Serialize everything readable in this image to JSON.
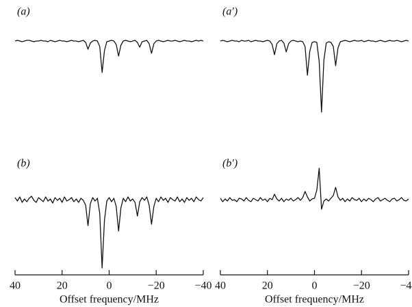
{
  "chart_data": [
    {
      "type": "line",
      "label": "(a)",
      "color": "#111",
      "xlim": [
        40,
        -40
      ],
      "ylim": [
        -110,
        20
      ],
      "x": [
        40,
        39,
        38,
        37,
        36,
        35,
        34,
        33,
        32,
        31,
        30,
        29,
        28,
        27,
        26,
        25,
        24,
        23,
        22,
        21,
        20,
        19,
        18,
        17,
        16,
        15,
        14,
        13,
        12,
        11,
        10,
        9,
        8,
        7,
        6,
        5,
        4,
        3,
        2,
        1,
        0,
        -1,
        -2,
        -3,
        -4,
        -5,
        -6,
        -7,
        -8,
        -9,
        -10,
        -11,
        -12,
        -13,
        -14,
        -15,
        -16,
        -17,
        -18,
        -19,
        -20,
        -21,
        -22,
        -23,
        -24,
        -25,
        -26,
        -27,
        -28,
        -29,
        -30,
        -31,
        -32,
        -33,
        -34,
        -35,
        -36,
        -37,
        -38,
        -39,
        -40
      ],
      "values": [
        0,
        1,
        0,
        -1,
        0,
        1,
        1,
        0,
        -1,
        0,
        0,
        1,
        0,
        0,
        -1,
        1,
        0,
        -1,
        0,
        1,
        0,
        0,
        -1,
        0,
        1,
        0,
        0,
        -1,
        0,
        1,
        -2,
        -12,
        -3,
        0,
        1,
        0,
        -8,
        -46,
        -14,
        -1,
        0,
        1,
        0,
        -5,
        -22,
        -6,
        0,
        1,
        0,
        -1,
        0,
        1,
        -2,
        -9,
        -1,
        0,
        1,
        -4,
        -18,
        -4,
        0,
        1,
        0,
        -1,
        0,
        1,
        0,
        0,
        1,
        0,
        -1,
        0,
        1,
        0,
        0,
        -1,
        0,
        1,
        0,
        1,
        0
      ]
    },
    {
      "type": "line",
      "label": "(a′)",
      "color": "#111",
      "xlim": [
        40,
        -40
      ],
      "ylim": [
        -110,
        20
      ],
      "x": [
        40,
        39,
        38,
        37,
        36,
        35,
        34,
        33,
        32,
        31,
        30,
        29,
        28,
        27,
        26,
        25,
        24,
        23,
        22,
        21,
        20,
        19,
        18,
        17,
        16,
        15,
        14,
        13,
        12,
        11,
        10,
        9,
        8,
        7,
        6,
        5,
        4,
        3,
        2,
        1,
        0,
        -1,
        -2,
        -3,
        -4,
        -5,
        -6,
        -7,
        -8,
        -9,
        -10,
        -11,
        -12,
        -13,
        -14,
        -15,
        -16,
        -17,
        -18,
        -19,
        -20,
        -21,
        -22,
        -23,
        -24,
        -25,
        -26,
        -27,
        -28,
        -29,
        -30,
        -31,
        -32,
        -33,
        -34,
        -35,
        -36,
        -37,
        -38,
        -39,
        -40
      ],
      "values": [
        0,
        1,
        0,
        -1,
        0,
        1,
        0,
        0,
        -1,
        1,
        0,
        0,
        1,
        -1,
        0,
        1,
        0,
        0,
        -1,
        0,
        1,
        0,
        -5,
        -20,
        -4,
        0,
        1,
        -3,
        -16,
        -4,
        0,
        1,
        0,
        -1,
        0,
        -1,
        -8,
        -50,
        -15,
        -2,
        -1,
        -2,
        -30,
        -104,
        -28,
        -3,
        -1,
        -2,
        -8,
        -36,
        -10,
        -1,
        0,
        1,
        0,
        -1,
        0,
        1,
        0,
        0,
        1,
        -1,
        0,
        1,
        0,
        0,
        -1,
        0,
        1,
        0,
        -1,
        0,
        1,
        0,
        0,
        1,
        0,
        -1,
        0,
        1,
        0
      ]
    },
    {
      "type": "line",
      "label": "(b)",
      "color": "#111",
      "xlim": [
        40,
        -40
      ],
      "ylim": [
        -108,
        22
      ],
      "xticks": [
        40,
        20,
        0,
        {
          "value": -20,
          "label": "−20"
        },
        {
          "value": -40,
          "label": "−40"
        }
      ],
      "xlabel": "Offset frequency/MHz",
      "x": [
        40,
        39,
        38,
        37,
        36,
        35,
        34,
        33,
        32,
        31,
        30,
        29,
        28,
        27,
        26,
        25,
        24,
        23,
        22,
        21,
        20,
        19,
        18,
        17,
        16,
        15,
        14,
        13,
        12,
        11,
        10,
        9,
        8,
        7,
        6,
        5,
        4,
        3,
        2,
        1,
        0,
        -1,
        -2,
        -3,
        -4,
        -5,
        -6,
        -7,
        -8,
        -9,
        -10,
        -11,
        -12,
        -13,
        -14,
        -15,
        -16,
        -17,
        -18,
        -19,
        -20,
        -21,
        -22,
        -23,
        -24,
        -25,
        -26,
        -27,
        -28,
        -29,
        -30,
        -31,
        -32,
        -33,
        -34,
        -35,
        -36,
        -37,
        -38,
        -39,
        -40
      ],
      "values": [
        3,
        -2,
        4,
        -4,
        1,
        -3,
        2,
        5,
        -1,
        -4,
        3,
        0,
        -3,
        4,
        -2,
        1,
        -5,
        3,
        -1,
        2,
        -4,
        4,
        -2,
        0,
        3,
        -3,
        1,
        -4,
        2,
        -1,
        -8,
        -38,
        -6,
        3,
        -2,
        2,
        -20,
        -100,
        -30,
        -2,
        3,
        -3,
        2,
        -10,
        -46,
        -12,
        2,
        -3,
        4,
        -2,
        1,
        -4,
        -24,
        -3,
        3,
        -1,
        4,
        -8,
        -36,
        -10,
        2,
        -3,
        4,
        -1,
        2,
        -4,
        3,
        0,
        -2,
        4,
        -3,
        1,
        -4,
        3,
        -1,
        2,
        -3,
        4,
        0,
        -2,
        3
      ]
    },
    {
      "type": "line",
      "label": "(b′)",
      "color": "#111",
      "xlim": [
        40,
        -40
      ],
      "ylim": [
        -108,
        22
      ],
      "xticks": [
        40,
        20,
        0,
        {
          "value": -20,
          "label": "−20"
        },
        {
          "value": -40,
          "label": "−40"
        }
      ],
      "xlabel": "Offset frequency/MHz",
      "x": [
        40,
        39,
        38,
        37,
        36,
        35,
        34,
        33,
        32,
        31,
        30,
        29,
        28,
        27,
        26,
        25,
        24,
        23,
        22,
        21,
        20,
        19,
        18,
        17,
        16,
        15,
        14,
        13,
        12,
        11,
        10,
        9,
        8,
        7,
        6,
        5,
        4,
        3,
        2,
        1,
        0,
        -1,
        -2,
        -3,
        -4,
        -5,
        -6,
        -7,
        -8,
        -9,
        -10,
        -11,
        -12,
        -13,
        -14,
        -15,
        -16,
        -17,
        -18,
        -19,
        -20,
        -21,
        -22,
        -23,
        -24,
        -25,
        -26,
        -27,
        -28,
        -29,
        -30,
        -31,
        -32,
        -33,
        -34,
        -35,
        -36,
        -37,
        -38,
        -39,
        -40
      ],
      "values": [
        2,
        -3,
        1,
        -2,
        3,
        -1,
        0,
        -3,
        2,
        1,
        -2,
        3,
        -1,
        -3,
        2,
        0,
        -2,
        3,
        -1,
        1,
        -3,
        2,
        0,
        8,
        1,
        -2,
        2,
        -3,
        1,
        -1,
        2,
        -2,
        0,
        3,
        -1,
        3,
        12,
        4,
        -2,
        1,
        2,
        14,
        46,
        -14,
        -2,
        1,
        -2,
        2,
        6,
        18,
        4,
        -1,
        2,
        -3,
        1,
        -2,
        3,
        0,
        -1,
        2,
        -3,
        1,
        -2,
        2,
        0,
        -3,
        1,
        3,
        -2,
        0,
        2,
        -1,
        -3,
        1,
        2,
        -2,
        0,
        3,
        -1,
        -2,
        1
      ]
    }
  ]
}
